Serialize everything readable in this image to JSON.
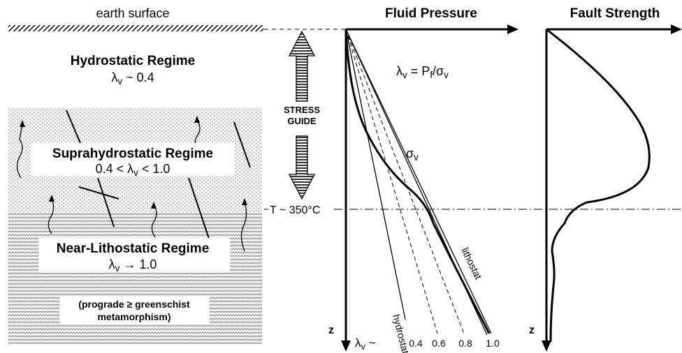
{
  "header": {
    "earth_surface": "earth surface",
    "fluid_pressure": "Fluid Pressure",
    "fault_strength": "Fault Strength"
  },
  "regimes": [
    {
      "name": "Hydrostatic Regime",
      "condition": [
        {
          "text": "λ"
        },
        {
          "text": "v",
          "sub": true
        },
        {
          "text": " ~ 0.4"
        }
      ]
    },
    {
      "name": "Suprahydrostatic Regime",
      "condition": [
        {
          "text": "0.4 < λ"
        },
        {
          "text": "v",
          "sub": true
        },
        {
          "text": " < 1.0"
        }
      ]
    },
    {
      "name": "Near-Lithostatic Regime",
      "condition": [
        {
          "text": "λ"
        },
        {
          "text": "v",
          "sub": true
        },
        {
          "text": " → 1.0"
        }
      ]
    }
  ],
  "note": [
    "(prograde ≥ greenschist",
    "metamorphism)"
  ],
  "stress_guide": [
    "STRESS",
    "GUIDE"
  ],
  "temperature": "T ~ 350°C",
  "equation": [
    {
      "text": "λ"
    },
    {
      "text": "v",
      "sub": true
    },
    {
      "text": " = P"
    },
    {
      "text": "f",
      "sub": true
    },
    {
      "text": "/σ"
    },
    {
      "text": "v",
      "sub": true
    }
  ],
  "curve_labels": {
    "sigma": [
      {
        "text": "σ"
      },
      {
        "text": "v",
        "sub": true
      }
    ],
    "hydrostat": "hydrostat",
    "lithostat": "lithostat"
  },
  "pressure_axis": {
    "depth_label": "z",
    "lambda_prefix": [
      {
        "text": "λ"
      },
      {
        "text": "v",
        "sub": true
      },
      {
        "text": " ~"
      }
    ],
    "lambda_values": [
      "0.4",
      "0.6",
      "0.8",
      "1.0"
    ]
  },
  "strength_axis": {
    "depth_label": "z"
  }
}
